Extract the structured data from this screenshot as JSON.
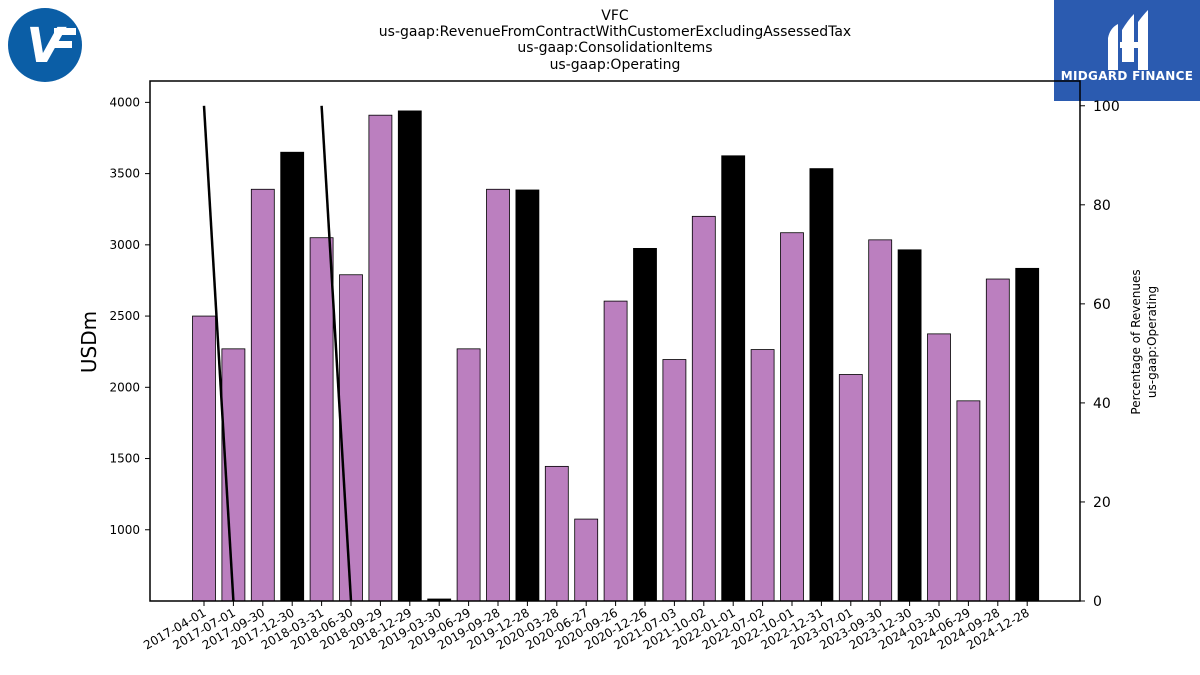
{
  "header": {
    "company_logo_text": "V",
    "brand_name": "MIDGARD FINANCE",
    "title_lines": [
      "VFC",
      "us-gaap:RevenueFromContractWithCustomerExcludingAssessedTax",
      "us-gaap:ConsolidationItems",
      "us-gaap:Operating"
    ]
  },
  "colors": {
    "bar_purple": "#bb7fbf",
    "bar_black": "#000000",
    "line": "#000000",
    "logo_blue": "#0b5ea6",
    "brand_blue": "#2b5bb0"
  },
  "chart_data": {
    "type": "bar",
    "title": "VFC us-gaap:RevenueFromContractWithCustomerExcludingAssessedTax us-gaap:ConsolidationItems us-gaap:Operating",
    "ylabel": "USDm",
    "y2label": [
      "Percentage of Revenues",
      "us-gaap:Operating"
    ],
    "ylim": [
      500,
      4150
    ],
    "y2lim": [
      0,
      105
    ],
    "yticks": [
      1000,
      1500,
      2000,
      2500,
      3000,
      3500,
      4000
    ],
    "y2ticks": [
      0,
      20,
      40,
      60,
      80,
      100
    ],
    "grid": false,
    "categories": [
      "2017-04-01",
      "2017-07-01",
      "2017-09-30",
      "2017-12-30",
      "2018-03-31",
      "2018-06-30",
      "2018-09-29",
      "2018-12-29",
      "2019-03-30",
      "2019-06-29",
      "2019-09-28",
      "2019-12-28",
      "2020-03-28",
      "2020-06-27",
      "2020-09-26",
      "2020-12-26",
      "2021-07-03",
      "2021-10-02",
      "2022-01-01",
      "2022-07-02",
      "2022-10-01",
      "2022-12-31",
      "2023-07-01",
      "2023-09-30",
      "2023-12-30",
      "2024-03-30",
      "2024-06-29",
      "2024-09-28",
      "2024-12-28"
    ],
    "values": [
      2500,
      2270,
      3390,
      3650,
      3050,
      2790,
      3910,
      3940,
      null,
      2270,
      3390,
      3385,
      1445,
      1075,
      2605,
      2975,
      2195,
      3200,
      3625,
      2265,
      3085,
      3535,
      2090,
      3035,
      2965,
      2375,
      1905,
      2760,
      2835
    ],
    "bar_colors": [
      "purple",
      "purple",
      "purple",
      "black",
      "purple",
      "purple",
      "purple",
      "black",
      "black",
      "purple",
      "purple",
      "black",
      "purple",
      "purple",
      "purple",
      "black",
      "purple",
      "purple",
      "black",
      "purple",
      "purple",
      "black",
      "purple",
      "purple",
      "black",
      "purple",
      "purple",
      "purple",
      "black"
    ],
    "series": [
      {
        "type": "line",
        "axis": "right",
        "values": [
          100,
          0,
          null,
          null,
          100,
          0,
          null,
          null,
          null,
          null,
          null,
          null,
          null,
          null,
          null,
          null,
          null,
          null,
          null,
          null,
          null,
          null,
          null,
          null,
          null,
          null,
          null,
          null,
          null
        ]
      }
    ]
  }
}
